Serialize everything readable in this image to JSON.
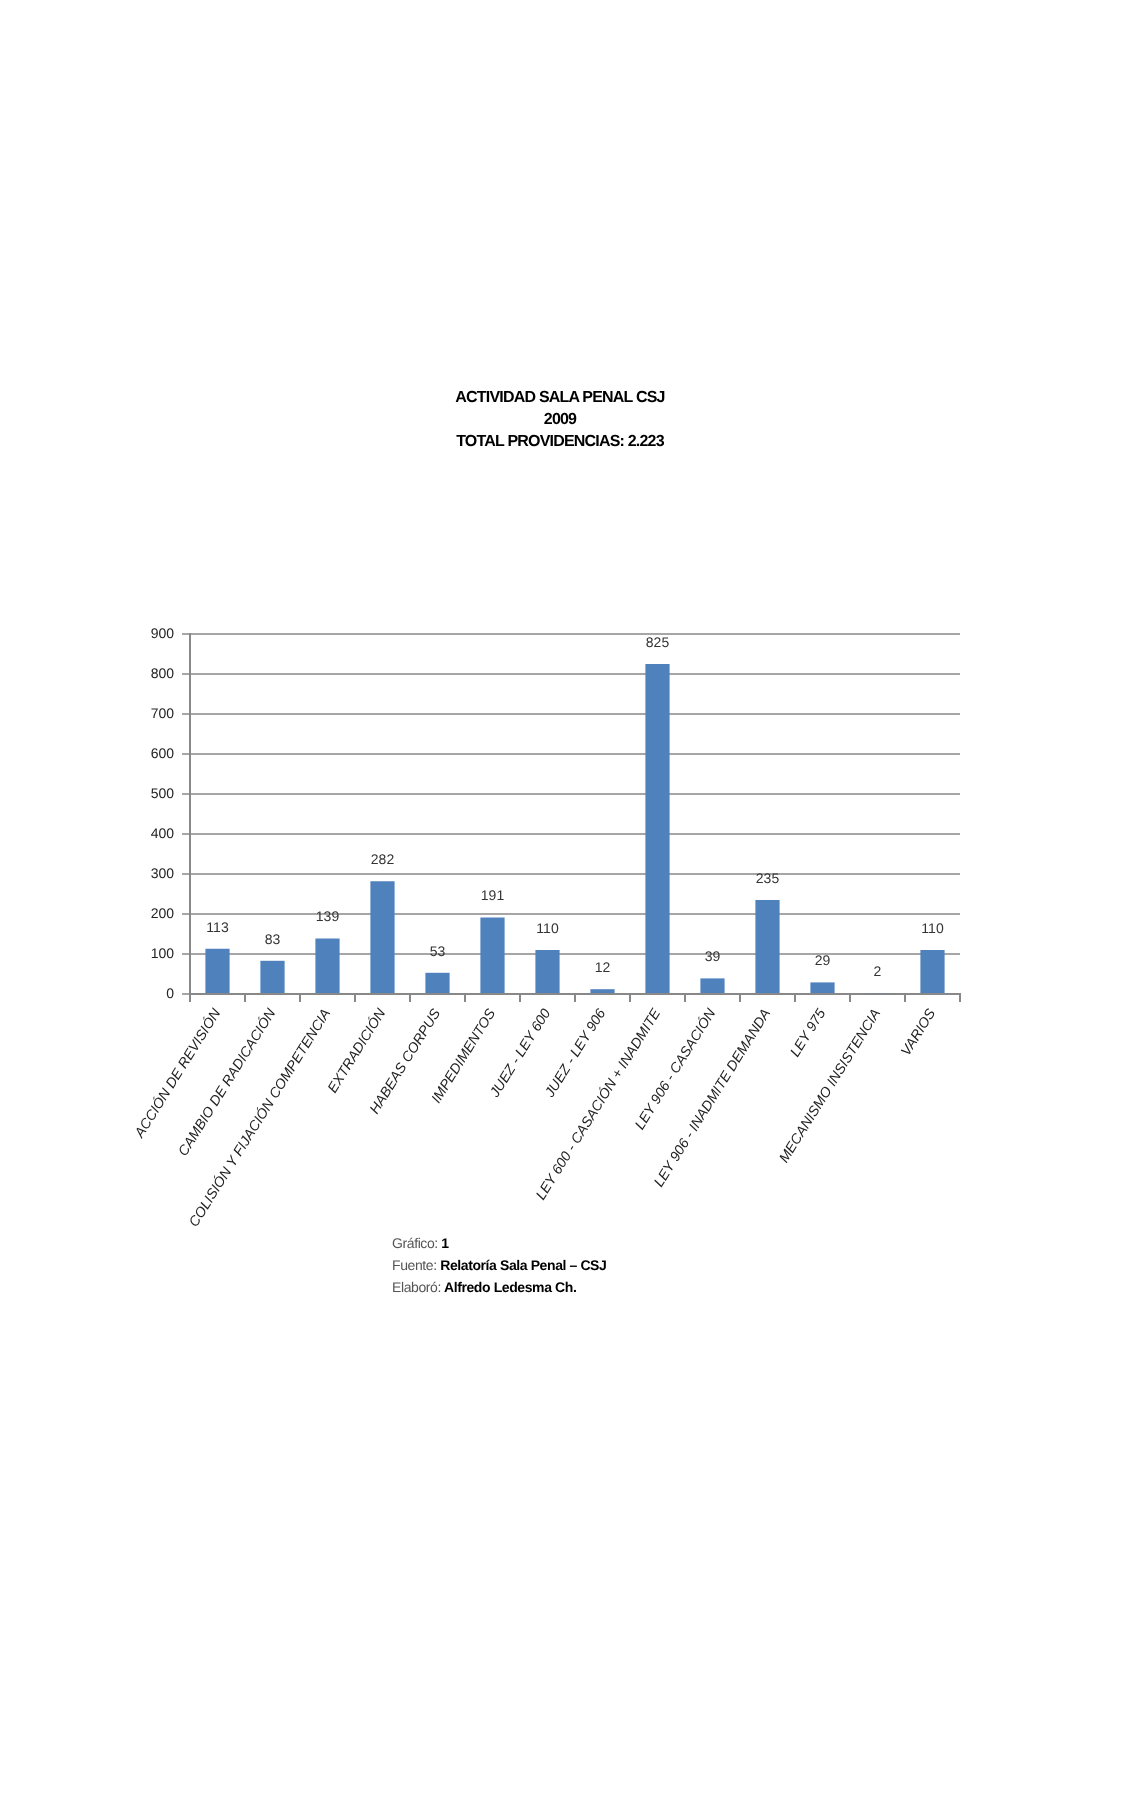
{
  "chart_data": {
    "type": "bar",
    "title": "ACTIVIDAD SALA PENAL CSJ",
    "subtitle": "2009\nTOTAL PROVIDENCIAS: 2.223",
    "categories": [
      "ACCIÓN DE REVISIÓN",
      "CAMBIO DE RADICACIÓN",
      "COLISIÓN Y FIJACIÓN COMPETENCIA",
      "EXTRADICIÓN",
      "HABEAS CORPUS",
      "IMPEDIMENTOS",
      "JUEZ - LEY 600",
      "JUEZ - LEY 906",
      "LEY 600 - CASACIÓN + INADMITE",
      "LEY 906 - CASACIÓN",
      "LEY 906 - INADMITE DEMANDA",
      "LEY 975",
      "MECANISMO INSISTENCIA",
      "VARIOS"
    ],
    "values": [
      113,
      83,
      139,
      282,
      53,
      191,
      110,
      12,
      825,
      39,
      235,
      29,
      2,
      110
    ],
    "color": "#4f81bd",
    "data_labels": true,
    "ylim": [
      0,
      900
    ],
    "yticks": [
      0,
      100,
      200,
      300,
      400,
      500,
      600,
      700,
      800,
      900
    ],
    "grid": "y",
    "annotations": [
      "Gráfico: 1",
      "Fuente: Relatoría Sala Penal – CSJ",
      "Elaboró: Alfredo Ledesma Ch."
    ]
  }
}
